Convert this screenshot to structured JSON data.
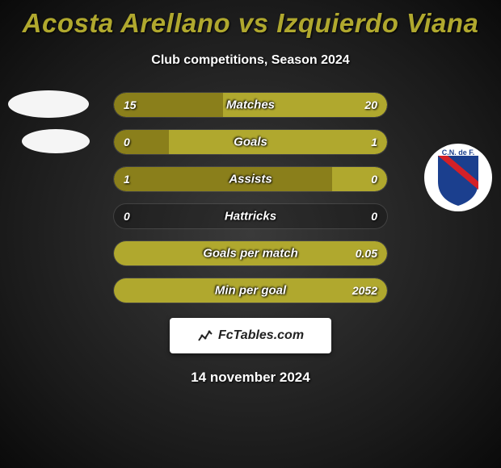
{
  "title_color": "#b0a82e",
  "title": "Acosta Arellano vs Izquierdo Viana",
  "subtitle": "Club competitions, Season 2024",
  "left_fill_color": "#8a7f1b",
  "right_fill_color": "#b0a82e",
  "rows": [
    {
      "label": "Matches",
      "left_val": "15",
      "right_val": "20",
      "left_pct": 40,
      "right_pct": 60
    },
    {
      "label": "Goals",
      "left_val": "0",
      "right_val": "1",
      "left_pct": 20,
      "right_pct": 80
    },
    {
      "label": "Assists",
      "left_val": "1",
      "right_val": "0",
      "left_pct": 80,
      "right_pct": 20
    },
    {
      "label": "Hattricks",
      "left_val": "0",
      "right_val": "0",
      "left_pct": 0,
      "right_pct": 0
    },
    {
      "label": "Goals per match",
      "left_val": "",
      "right_val": "0.05",
      "left_pct": 0,
      "right_pct": 100
    },
    {
      "label": "Min per goal",
      "left_val": "",
      "right_val": "2052",
      "left_pct": 0,
      "right_pct": 100
    }
  ],
  "footer_brand": "FcTables.com",
  "date": "14 november 2024",
  "right_club_badge": {
    "outer": "#ffffff",
    "shield": "#1b3f8e",
    "stripe": "#d42027",
    "text": "C.N. de F."
  }
}
